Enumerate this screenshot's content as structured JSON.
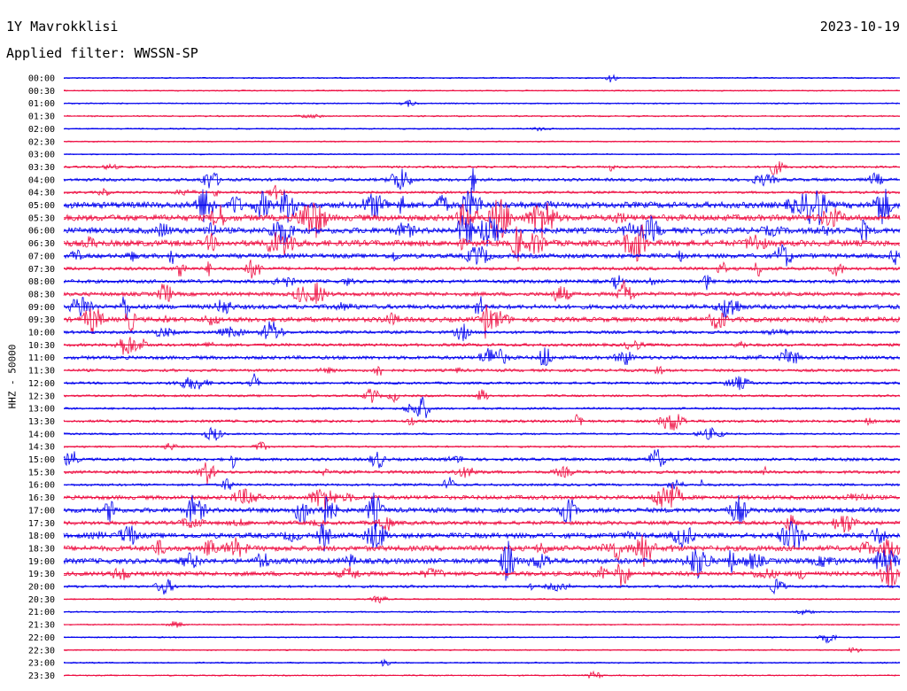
{
  "header": {
    "station": "1Y Mavrokklisi",
    "date": "2023-10-19",
    "filter": "Applied filter: WWSSN-SP"
  },
  "chart_data": {
    "type": "line",
    "ylabel": "HHZ - 50000",
    "trace_colors": [
      "#0000ee",
      "#ee1144"
    ],
    "row_labels": [
      "00:00",
      "00:30",
      "01:00",
      "01:30",
      "02:00",
      "02:30",
      "03:00",
      "03:30",
      "04:00",
      "04:30",
      "05:00",
      "05:30",
      "06:00",
      "06:30",
      "07:00",
      "07:30",
      "08:00",
      "08:30",
      "09:00",
      "09:30",
      "10:00",
      "10:30",
      "11:00",
      "11:30",
      "12:00",
      "12:30",
      "13:00",
      "13:30",
      "14:00",
      "14:30",
      "15:00",
      "15:30",
      "16:00",
      "16:30",
      "17:00",
      "17:30",
      "18:00",
      "18:30",
      "19:00",
      "19:30",
      "20:00",
      "20:30",
      "21:00",
      "21:30",
      "22:00",
      "22:30",
      "23:00",
      "23:30"
    ],
    "activity_level": [
      0.05,
      0.03,
      0.04,
      0.08,
      0.05,
      0.03,
      0.03,
      0.2,
      0.35,
      0.25,
      0.9,
      0.9,
      0.85,
      0.9,
      0.6,
      0.4,
      0.45,
      0.5,
      0.6,
      0.65,
      0.35,
      0.35,
      0.45,
      0.3,
      0.25,
      0.2,
      0.2,
      0.3,
      0.15,
      0.15,
      0.35,
      0.35,
      0.25,
      0.55,
      0.65,
      0.5,
      0.75,
      0.75,
      0.75,
      0.6,
      0.25,
      0.06,
      0.08,
      0.05,
      0.05,
      0.05,
      0.06,
      0.05
    ]
  }
}
